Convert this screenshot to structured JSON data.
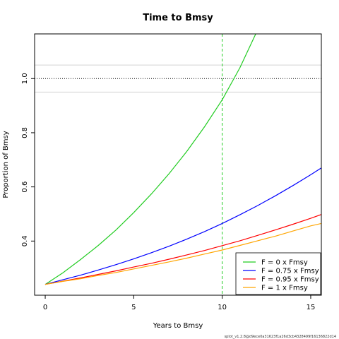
{
  "chart_data": {
    "type": "line",
    "title": "Time to Bmsy",
    "xlabel": "Years to Bmsy",
    "ylabel": "Proportion of Bmsy",
    "xlim": [
      -0.6,
      15.6
    ],
    "ylim": [
      0.2,
      1.165
    ],
    "x_ticks": [
      0,
      5,
      10,
      15
    ],
    "y_ticks": [
      0.4,
      0.6,
      0.8,
      1.0
    ],
    "y_tick_labels": [
      "0.4",
      "0.6",
      "0.8",
      "1.0"
    ],
    "reference_lines": {
      "target": 1.0,
      "band_upper": 1.05,
      "band_lower": 0.95,
      "years_marker": 10
    },
    "series": [
      {
        "name": "F = 0 x Fmsy",
        "color": "#22cc22",
        "x": [
          0,
          1,
          2,
          3,
          4,
          5,
          6,
          7,
          8,
          9,
          10,
          11,
          12
        ],
        "y": [
          0.24,
          0.283,
          0.332,
          0.384,
          0.441,
          0.505,
          0.574,
          0.649,
          0.731,
          0.822,
          0.922,
          1.04,
          1.18
        ]
      },
      {
        "name": "F = 0.75 x Fmsy",
        "color": "#0000ff",
        "x": [
          0,
          1,
          2,
          3,
          4,
          5,
          6,
          7,
          8,
          9,
          10,
          11,
          12,
          13,
          14,
          15,
          15.6
        ],
        "y": [
          0.24,
          0.257,
          0.274,
          0.293,
          0.313,
          0.334,
          0.357,
          0.381,
          0.407,
          0.435,
          0.465,
          0.497,
          0.531,
          0.567,
          0.605,
          0.645,
          0.67
        ]
      },
      {
        "name": "F = 0.95 x Fmsy",
        "color": "#ff0000",
        "x": [
          0,
          1,
          2,
          3,
          4,
          5,
          6,
          7,
          8,
          9,
          10,
          11,
          12,
          13,
          14,
          15,
          15.6
        ],
        "y": [
          0.24,
          0.252,
          0.264,
          0.277,
          0.29,
          0.304,
          0.318,
          0.333,
          0.349,
          0.365,
          0.383,
          0.401,
          0.421,
          0.441,
          0.462,
          0.484,
          0.498
        ]
      },
      {
        "name": "F = 1 x Fmsy",
        "color": "#ffa500",
        "x": [
          0,
          1,
          2,
          3,
          4,
          5,
          6,
          7,
          8,
          9,
          10,
          11,
          12,
          13,
          14,
          15,
          15.6
        ],
        "y": [
          0.24,
          0.251,
          0.261,
          0.273,
          0.284,
          0.297,
          0.31,
          0.323,
          0.337,
          0.352,
          0.367,
          0.384,
          0.401,
          0.418,
          0.437,
          0.456,
          0.465
        ]
      }
    ],
    "legend_position": "bottom-right",
    "grid": false
  },
  "footer": "splot_v1.2.8@d9ece0a31623f1a26d3cb4328499f16136822d14"
}
